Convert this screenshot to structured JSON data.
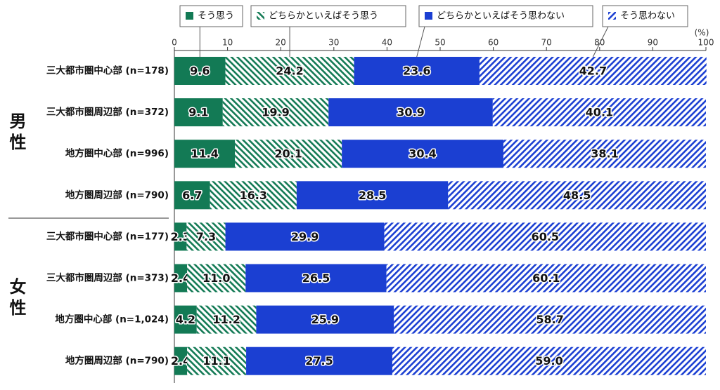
{
  "chart_data": {
    "type": "stacked-bar-horizontal",
    "x_unit": "(%)",
    "xlim": [
      0,
      100
    ],
    "xticks": [
      0,
      10,
      20,
      30,
      40,
      50,
      60,
      70,
      80,
      90,
      100
    ],
    "groups": [
      {
        "label": "男性",
        "categories": [
          "三大都市圏中心部 (n=178)",
          "三大都市圏周辺部 (n=372)",
          "地方圏中心部 (n=996)",
          "地方圏周辺部 (n=790)"
        ]
      },
      {
        "label": "女性",
        "categories": [
          "三大都市圏中心部 (n=177)",
          "三大都市圏周辺部 (n=373)",
          "地方圏中心部 (n=1,024)",
          "地方圏周辺部 (n=790)"
        ]
      }
    ],
    "series": [
      {
        "name": "そう思う",
        "color": "#137a55",
        "pattern": "solid",
        "values": [
          9.6,
          9.1,
          11.4,
          6.7,
          2.3,
          2.4,
          4.2,
          2.4
        ]
      },
      {
        "name": "どちらかといえばそう思う",
        "color": "#137a55",
        "pattern": "back-diagonal",
        "values": [
          24.2,
          19.9,
          20.1,
          16.3,
          7.3,
          11.0,
          11.2,
          11.1
        ],
        "value_labels": [
          "24.2",
          "19.9",
          "20.1",
          "16.3",
          "7.3",
          "11.0",
          "11.2",
          "11.1"
        ]
      },
      {
        "name": "どちらかといえばそう思わない",
        "color": "#1b3fd2",
        "pattern": "solid",
        "values": [
          23.6,
          30.9,
          30.4,
          28.5,
          29.9,
          26.5,
          25.9,
          27.5
        ]
      },
      {
        "name": "そう思わない",
        "color": "#1b3fd2",
        "pattern": "diagonal",
        "values": [
          42.7,
          40.1,
          38.1,
          48.5,
          60.5,
          60.1,
          58.7,
          59.0
        ],
        "value_labels": [
          "42.7",
          "40.1",
          "38.1",
          "48.5",
          "60.5",
          "60.1",
          "58.7",
          "59.0"
        ]
      }
    ]
  }
}
